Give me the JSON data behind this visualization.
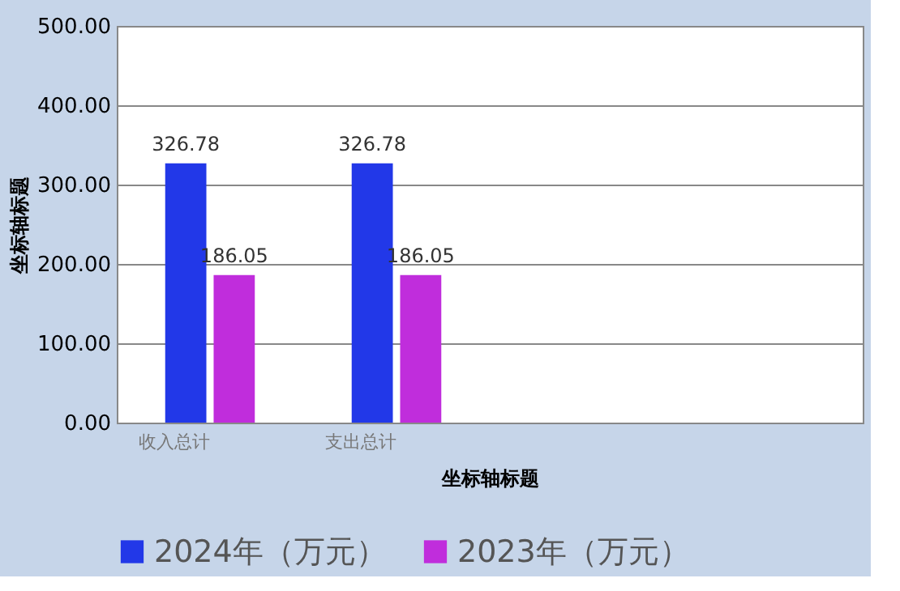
{
  "chart_data": {
    "type": "bar",
    "xlabel": "坐标轴标题",
    "ylabel": "坐标轴标题",
    "categories": [
      "收入总计",
      "支出总计",
      null,
      null
    ],
    "series": [
      {
        "name": "2024年（万元）",
        "color": "#2238e8",
        "values": [
          326.78,
          326.78,
          null,
          null
        ]
      },
      {
        "name": "2023年（万元）",
        "color": "#c02ddc",
        "values": [
          186.05,
          186.05,
          null,
          null
        ]
      }
    ],
    "ylim": [
      0,
      500
    ],
    "yticks": [
      {
        "value": 0,
        "label": "0.00"
      },
      {
        "value": 100,
        "label": "100.00"
      },
      {
        "value": 200,
        "label": "200.00"
      },
      {
        "value": 300,
        "label": "300.00"
      },
      {
        "value": 400,
        "label": "400.00"
      },
      {
        "value": 500,
        "label": "500.00"
      }
    ],
    "grid": "y",
    "legend": "bottom",
    "data_labels": true
  }
}
